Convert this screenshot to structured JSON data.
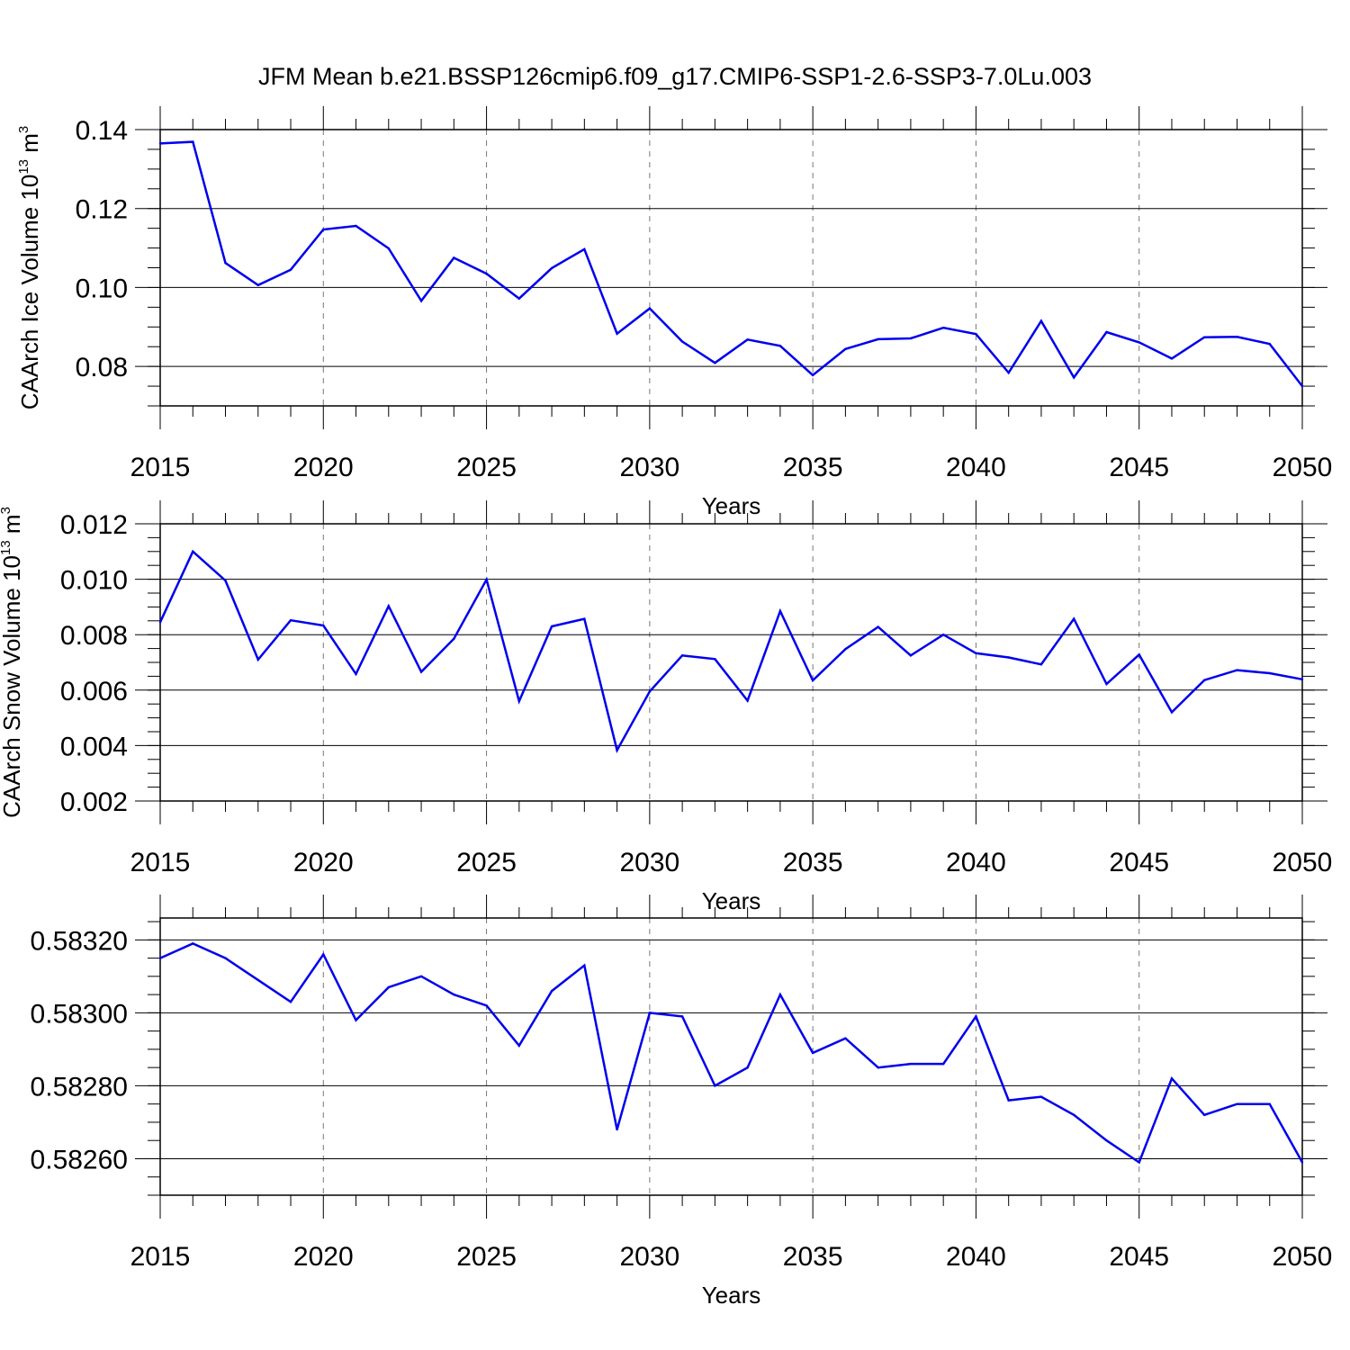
{
  "title": "JFM Mean b.e21.BSSP126cmip6.f09_g17.CMIP6-SSP1-2.6-SSP3-7.0Lu.003",
  "line_color": "#0000ee",
  "chart_data": [
    {
      "type": "line",
      "xlabel": "Years",
      "ylabel": "CAArch Ice Volume 10",
      "ylabel_exp": "13",
      "ylabel_unit": " m",
      "ylabel_unit_exp": "3",
      "xlim": [
        2015,
        2050
      ],
      "ylim": [
        0.07,
        0.14
      ],
      "yticks": [
        0.08,
        0.1,
        0.12,
        0.14
      ],
      "ytick_labels": [
        "0.08",
        "0.10",
        "0.12",
        "0.14"
      ],
      "xticks": [
        2015,
        2020,
        2025,
        2030,
        2035,
        2040,
        2045,
        2050
      ],
      "xtick_labels": [
        "2015",
        "2020",
        "2025",
        "2030",
        "2035",
        "2040",
        "2045",
        "2050"
      ],
      "x": [
        2015,
        2016,
        2017,
        2018,
        2019,
        2020,
        2021,
        2022,
        2023,
        2024,
        2025,
        2026,
        2027,
        2028,
        2029,
        2030,
        2031,
        2032,
        2033,
        2034,
        2035,
        2036,
        2037,
        2038,
        2039,
        2040,
        2041,
        2042,
        2043,
        2044,
        2045,
        2046,
        2047,
        2048,
        2049,
        2050
      ],
      "y": [
        0.1365,
        0.1369,
        0.1062,
        0.1006,
        0.1045,
        0.1147,
        0.1156,
        0.1099,
        0.0966,
        0.1075,
        0.1035,
        0.0972,
        0.1049,
        0.1097,
        0.0883,
        0.0947,
        0.0863,
        0.0809,
        0.0868,
        0.0852,
        0.0778,
        0.0844,
        0.0869,
        0.0871,
        0.0898,
        0.0882,
        0.0784,
        0.0915,
        0.0772,
        0.0887,
        0.0861,
        0.082,
        0.0874,
        0.0875,
        0.0857,
        0.075
      ]
    },
    {
      "type": "line",
      "xlabel": "Years",
      "ylabel": "CAArch Snow Volume 10",
      "ylabel_exp": "13",
      "ylabel_unit": " m",
      "ylabel_unit_exp": "3",
      "xlim": [
        2015,
        2050
      ],
      "ylim": [
        0.002,
        0.012
      ],
      "yticks": [
        0.002,
        0.004,
        0.006,
        0.008,
        0.01,
        0.012
      ],
      "ytick_labels": [
        "0.002",
        "0.004",
        "0.006",
        "0.008",
        "0.010",
        "0.012"
      ],
      "xticks": [
        2015,
        2020,
        2025,
        2030,
        2035,
        2040,
        2045,
        2050
      ],
      "xtick_labels": [
        "2015",
        "2020",
        "2025",
        "2030",
        "2035",
        "2040",
        "2045",
        "2050"
      ],
      "x": [
        2015,
        2016,
        2017,
        2018,
        2019,
        2020,
        2021,
        2022,
        2023,
        2024,
        2025,
        2026,
        2027,
        2028,
        2029,
        2030,
        2031,
        2032,
        2033,
        2034,
        2035,
        2036,
        2037,
        2038,
        2039,
        2040,
        2041,
        2042,
        2043,
        2044,
        2045,
        2046,
        2047,
        2048,
        2049,
        2050
      ],
      "y": [
        0.00845,
        0.011,
        0.00995,
        0.0071,
        0.00852,
        0.00833,
        0.00658,
        0.00903,
        0.00666,
        0.00785,
        0.00999,
        0.0056,
        0.0083,
        0.00857,
        0.00383,
        0.00595,
        0.00725,
        0.00712,
        0.00562,
        0.00885,
        0.00635,
        0.00748,
        0.00828,
        0.00725,
        0.008,
        0.00733,
        0.00718,
        0.00693,
        0.00857,
        0.00622,
        0.00728,
        0.0052,
        0.00636,
        0.00672,
        0.00661,
        0.00639
      ]
    },
    {
      "type": "line",
      "xlabel": "Years",
      "ylabel": "",
      "xlim": [
        2015,
        2050
      ],
      "ylim": [
        0.5825,
        0.58326
      ],
      "yticks": [
        0.5826,
        0.5828,
        0.583,
        0.5832
      ],
      "ytick_labels": [
        "0.58260",
        "0.58280",
        "0.58300",
        "0.58320"
      ],
      "xticks": [
        2015,
        2020,
        2025,
        2030,
        2035,
        2040,
        2045,
        2050
      ],
      "xtick_labels": [
        "2015",
        "2020",
        "2025",
        "2030",
        "2035",
        "2040",
        "2045",
        "2050"
      ],
      "x": [
        2015,
        2016,
        2017,
        2018,
        2019,
        2020,
        2021,
        2022,
        2023,
        2024,
        2025,
        2026,
        2027,
        2028,
        2029,
        2030,
        2031,
        2032,
        2033,
        2034,
        2035,
        2036,
        2037,
        2038,
        2039,
        2040,
        2041,
        2042,
        2043,
        2044,
        2045,
        2046,
        2047,
        2048,
        2049,
        2050
      ],
      "y": [
        0.58315,
        0.58319,
        0.58315,
        0.58309,
        0.58303,
        0.58316,
        0.58298,
        0.58307,
        0.5831,
        0.58305,
        0.58302,
        0.58291,
        0.58306,
        0.58313,
        0.58268,
        0.583,
        0.58299,
        0.5828,
        0.58285,
        0.58305,
        0.58289,
        0.58293,
        0.58285,
        0.58286,
        0.58286,
        0.58299,
        0.58276,
        0.58277,
        0.58272,
        0.58265,
        0.58259,
        0.58282,
        0.58272,
        0.58275,
        0.58275,
        0.58259
      ]
    }
  ]
}
